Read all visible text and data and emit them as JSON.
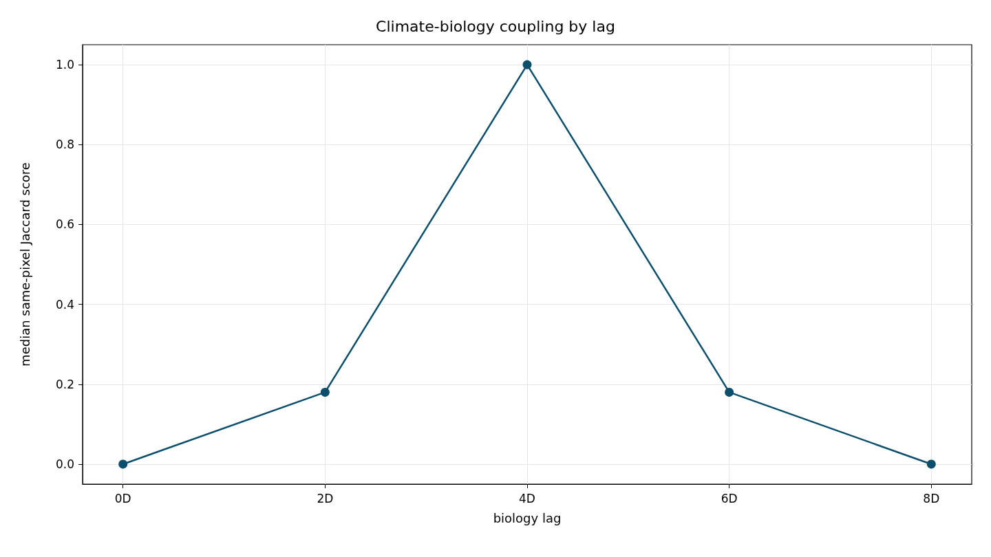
{
  "chart_data": {
    "type": "line",
    "title": "Climate-biology coupling by lag",
    "xlabel": "biology lag",
    "ylabel": "median same-pixel Jaccard score",
    "categories": [
      "0D",
      "2D",
      "4D",
      "6D",
      "8D"
    ],
    "series": [
      {
        "color": "#0b4f6c",
        "values": [
          0,
          0.18,
          1.0,
          0.18,
          0
        ]
      }
    ],
    "ylim": [
      -0.05,
      1.05
    ],
    "yticks": [
      {
        "value": 0,
        "label": "0.0"
      },
      {
        "value": 0.2,
        "label": "0.2"
      },
      {
        "value": 0.4,
        "label": "0.4"
      },
      {
        "value": 0.6,
        "label": "0.6"
      },
      {
        "value": 0.8,
        "label": "0.8"
      },
      {
        "value": 1.0,
        "label": "1.0"
      }
    ],
    "grid": true,
    "marker": "circle",
    "line_style": "solid"
  }
}
